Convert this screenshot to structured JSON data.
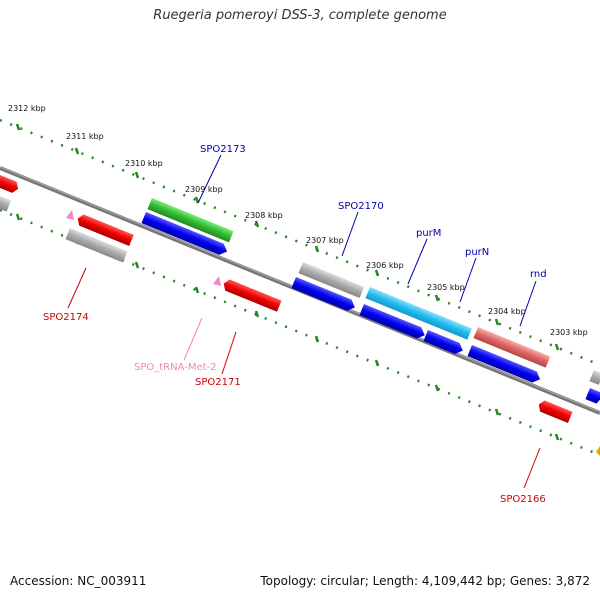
{
  "title": "Ruegeria pomeroyi DSS-3, complete genome",
  "footer": {
    "accession": "Accession: NC_003911",
    "stats": "Topology: circular; Length: 4,109,442 bp; Genes: 3,872"
  },
  "ticks": [
    {
      "label": "2312 kbp"
    },
    {
      "label": "2311 kbp"
    },
    {
      "label": "2310 kbp"
    },
    {
      "label": "2309 kbp"
    },
    {
      "label": "2308 kbp"
    },
    {
      "label": "2307 kbp"
    },
    {
      "label": "2306 kbp"
    },
    {
      "label": "2305 kbp"
    },
    {
      "label": "2304 kbp"
    },
    {
      "label": "2303 kbp"
    }
  ],
  "gene_labels": [
    {
      "name": "SPO2173",
      "color": "#0000aa"
    },
    {
      "name": "SPO2170",
      "color": "#0000aa"
    },
    {
      "name": "purM",
      "color": "#0000aa"
    },
    {
      "name": "purN",
      "color": "#0000aa"
    },
    {
      "name": "rnd",
      "color": "#0000aa"
    },
    {
      "name": "SPO2174",
      "color": "#cc0000"
    },
    {
      "name": "SPO_tRNA-Met-2",
      "color": "#ee88aa"
    },
    {
      "name": "SPO2171",
      "color": "#cc0000"
    },
    {
      "name": "SPO2166",
      "color": "#cc0000"
    }
  ],
  "colors": {
    "backbone": "#777777",
    "tick": "#228822",
    "forward_cds": "#0000ee",
    "reverse_cds": "#ee0000",
    "other": "#aaaaaa",
    "highlight_green": "#33bb33",
    "highlight_cyan": "#22bbee",
    "highlight_salmon": "#dd6666",
    "trna": "#ee88cc"
  }
}
